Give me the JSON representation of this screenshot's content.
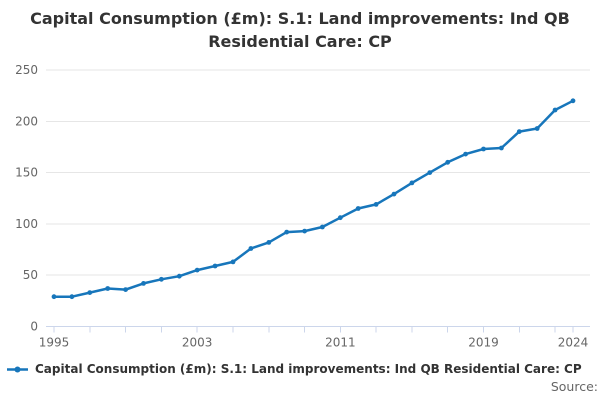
{
  "title": {
    "text": "Capital Consumption (£m): S.1: Land improvements: Ind QB Residential Care: CP",
    "lines": [
      "Capital Consumption (£m): S.1: Land improvements: Ind QB",
      "Residential Care: CP"
    ]
  },
  "legend": {
    "label": "Capital Consumption (£m): S.1: Land improvements: Ind QB Residential Care: CP"
  },
  "source": {
    "label": "Source:"
  },
  "colors": {
    "series": "#1776bb",
    "title_text": "#333333",
    "axis_labels": "#666666",
    "gridline": "#e6e6e6",
    "axis_line": "#ccd6eb",
    "legend_text": "#333333",
    "source_text": "#666666"
  },
  "chart_data": {
    "type": "line",
    "title": "Capital Consumption (£m): S.1: Land improvements: Ind QB Residential Care: CP",
    "xlabel": "",
    "ylabel": "",
    "xlim": [
      1995,
      2024
    ],
    "ylim": [
      0,
      250
    ],
    "y_ticks": [
      0,
      50,
      100,
      150,
      200,
      250
    ],
    "x_label_ticks": [
      1995,
      2003,
      2011,
      2019,
      2024
    ],
    "x_minor_tick_step": 2,
    "grid": "horizontal",
    "legend_position": "bottom-left",
    "marker": "circle",
    "series": [
      {
        "name": "Capital Consumption (£m): S.1: Land improvements: Ind QB Residential Care: CP",
        "x": [
          1995,
          1996,
          1997,
          1998,
          1999,
          2000,
          2001,
          2002,
          2003,
          2004,
          2005,
          2006,
          2007,
          2008,
          2009,
          2010,
          2011,
          2012,
          2013,
          2014,
          2015,
          2016,
          2017,
          2018,
          2019,
          2020,
          2021,
          2022,
          2023,
          2024
        ],
        "values": [
          29,
          29,
          33,
          37,
          36,
          42,
          46,
          49,
          55,
          59,
          63,
          76,
          82,
          92,
          93,
          97,
          106,
          115,
          119,
          129,
          140,
          150,
          160,
          168,
          173,
          174,
          190,
          193,
          211,
          220
        ]
      }
    ]
  }
}
